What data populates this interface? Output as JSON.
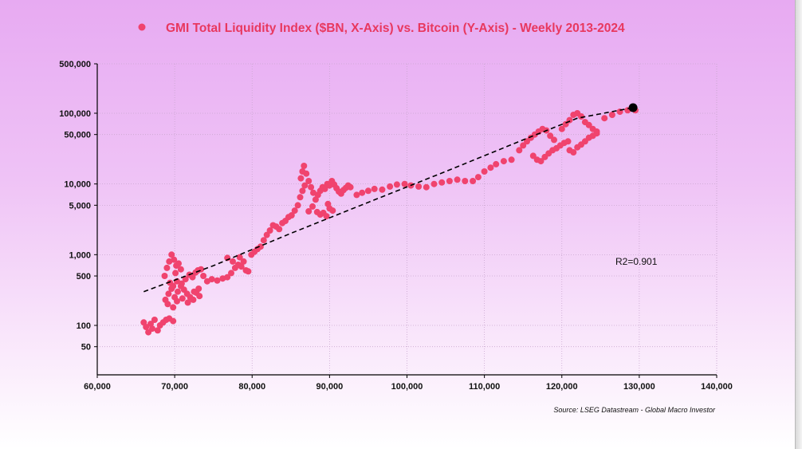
{
  "chart_data": {
    "type": "scatter",
    "title": "GMI Total Liquidity Index ($BN, X-Axis) vs. Bitcoin (Y-Axis) - Weekly 2013-2024",
    "xlabel": "",
    "ylabel": "",
    "xlim": [
      60000,
      140000
    ],
    "ylim": [
      20,
      500000
    ],
    "y_scale": "log",
    "x_ticks": [
      60000,
      70000,
      80000,
      90000,
      100000,
      110000,
      120000,
      130000,
      140000
    ],
    "x_tick_labels": [
      "60,000",
      "70,000",
      "80,000",
      "90,000",
      "100,000",
      "110,000",
      "120,000",
      "130,000",
      "140,000"
    ],
    "y_ticks": [
      50,
      100,
      500,
      1000,
      5000,
      10000,
      50000,
      100000,
      500000
    ],
    "y_tick_labels": [
      "50",
      "100",
      "500",
      "1,000",
      "5,000",
      "10,000",
      "50,000",
      "100,000",
      "500,000"
    ],
    "grid": true,
    "legend_position": "top",
    "source": "Source: LSEG Datastream - Global Macro Investor",
    "annotation": "R2=0.901",
    "colors": {
      "series": "#f0436e",
      "latest": "#000000",
      "trend": "#000000",
      "title": "#e8385f"
    },
    "series": [
      {
        "name": "GMI Total Liquidity Index ($BN, X-Axis) vs. Bitcoin (Y-Axis) - Weekly 2013-2024",
        "points": [
          [
            66000,
            110
          ],
          [
            66300,
            95
          ],
          [
            66600,
            80
          ],
          [
            66900,
            105
          ],
          [
            67100,
            90
          ],
          [
            67400,
            120
          ],
          [
            67800,
            85
          ],
          [
            68100,
            100
          ],
          [
            68500,
            110
          ],
          [
            68900,
            120
          ],
          [
            69300,
            125
          ],
          [
            69800,
            115
          ],
          [
            68700,
            500
          ],
          [
            69000,
            650
          ],
          [
            69300,
            800
          ],
          [
            69600,
            1000
          ],
          [
            69900,
            850
          ],
          [
            70200,
            700
          ],
          [
            70500,
            750
          ],
          [
            70800,
            620
          ],
          [
            70100,
            550
          ],
          [
            68800,
            230
          ],
          [
            69200,
            280
          ],
          [
            69600,
            330
          ],
          [
            70000,
            250
          ],
          [
            70400,
            300
          ],
          [
            70800,
            360
          ],
          [
            71200,
            320
          ],
          [
            71600,
            280
          ],
          [
            72000,
            250
          ],
          [
            72400,
            230
          ],
          [
            72800,
            290
          ],
          [
            73200,
            260
          ],
          [
            69400,
            400
          ],
          [
            69800,
            360
          ],
          [
            70300,
            420
          ],
          [
            70900,
            390
          ],
          [
            71400,
            450
          ],
          [
            71900,
            520
          ],
          [
            72300,
            480
          ],
          [
            72700,
            560
          ],
          [
            73000,
            600
          ],
          [
            73400,
            620
          ],
          [
            73700,
            500
          ],
          [
            69100,
            200
          ],
          [
            69800,
            180
          ],
          [
            70300,
            220
          ],
          [
            71000,
            240
          ],
          [
            71700,
            210
          ],
          [
            72500,
            300
          ],
          [
            73100,
            330
          ],
          [
            74200,
            420
          ],
          [
            74800,
            450
          ],
          [
            75500,
            430
          ],
          [
            76200,
            460
          ],
          [
            76800,
            480
          ],
          [
            77300,
            550
          ],
          [
            77800,
            650
          ],
          [
            78200,
            720
          ],
          [
            78600,
            680
          ],
          [
            78900,
            800
          ],
          [
            79200,
            600
          ],
          [
            79500,
            580
          ],
          [
            77500,
            800
          ],
          [
            76800,
            900
          ],
          [
            78400,
            920
          ],
          [
            79900,
            1000
          ],
          [
            80300,
            1100
          ],
          [
            80700,
            1200
          ],
          [
            81100,
            1300
          ],
          [
            81500,
            1600
          ],
          [
            81900,
            1900
          ],
          [
            82300,
            2200
          ],
          [
            82700,
            2600
          ],
          [
            83100,
            2500
          ],
          [
            83500,
            2300
          ],
          [
            83900,
            2800
          ],
          [
            84300,
            3000
          ],
          [
            84700,
            3400
          ],
          [
            85100,
            3600
          ],
          [
            85500,
            4200
          ],
          [
            85900,
            5000
          ],
          [
            86200,
            6500
          ],
          [
            86500,
            8000
          ],
          [
            86800,
            9500
          ],
          [
            86300,
            12000
          ],
          [
            86500,
            15000
          ],
          [
            86700,
            18000
          ],
          [
            87000,
            14000
          ],
          [
            87300,
            11000
          ],
          [
            87600,
            9000
          ],
          [
            87900,
            7500
          ],
          [
            88200,
            6000
          ],
          [
            88500,
            7000
          ],
          [
            88800,
            8000
          ],
          [
            89100,
            9000
          ],
          [
            89400,
            8500
          ],
          [
            89700,
            10000
          ],
          [
            90000,
            9500
          ],
          [
            90300,
            11000
          ],
          [
            90600,
            9800
          ],
          [
            90900,
            8700
          ],
          [
            91200,
            7800
          ],
          [
            91500,
            7300
          ],
          [
            91800,
            8200
          ],
          [
            92100,
            8800
          ],
          [
            92400,
            9500
          ],
          [
            92700,
            9000
          ],
          [
            88400,
            4000
          ],
          [
            88800,
            3700
          ],
          [
            89200,
            3900
          ],
          [
            89600,
            3500
          ],
          [
            90000,
            4500
          ],
          [
            90400,
            4200
          ],
          [
            87800,
            4800
          ],
          [
            87300,
            4100
          ],
          [
            89800,
            5200
          ],
          [
            93500,
            7000
          ],
          [
            94200,
            7500
          ],
          [
            95000,
            8000
          ],
          [
            95800,
            8500
          ],
          [
            96800,
            8300
          ],
          [
            97800,
            9200
          ],
          [
            98700,
            9800
          ],
          [
            99700,
            10000
          ],
          [
            100500,
            9500
          ],
          [
            101500,
            9200
          ],
          [
            102500,
            9000
          ],
          [
            103500,
            10000
          ],
          [
            104500,
            10500
          ],
          [
            105500,
            11000
          ],
          [
            106500,
            11500
          ],
          [
            107500,
            11000
          ],
          [
            108500,
            11000
          ],
          [
            109200,
            12500
          ],
          [
            110000,
            15000
          ],
          [
            110800,
            17000
          ],
          [
            111500,
            19000
          ],
          [
            112500,
            21000
          ],
          [
            113500,
            22000
          ],
          [
            114500,
            30000
          ],
          [
            115000,
            35000
          ],
          [
            115500,
            40000
          ],
          [
            116000,
            45000
          ],
          [
            116500,
            50000
          ],
          [
            117000,
            55000
          ],
          [
            117500,
            60000
          ],
          [
            118000,
            57000
          ],
          [
            118500,
            48000
          ],
          [
            119000,
            42000
          ],
          [
            116300,
            25000
          ],
          [
            116800,
            22000
          ],
          [
            117300,
            21000
          ],
          [
            117800,
            24000
          ],
          [
            118300,
            27000
          ],
          [
            118800,
            30000
          ],
          [
            119300,
            32000
          ],
          [
            119800,
            35000
          ],
          [
            120300,
            38000
          ],
          [
            120800,
            40000
          ],
          [
            120000,
            60000
          ],
          [
            120500,
            70000
          ],
          [
            121000,
            80000
          ],
          [
            121500,
            95000
          ],
          [
            122000,
            100000
          ],
          [
            122500,
            90000
          ],
          [
            123000,
            75000
          ],
          [
            123500,
            68000
          ],
          [
            124000,
            60000
          ],
          [
            124500,
            55000
          ],
          [
            121000,
            30000
          ],
          [
            121500,
            28000
          ],
          [
            122000,
            33000
          ],
          [
            122500,
            36000
          ],
          [
            123000,
            40000
          ],
          [
            123500,
            45000
          ],
          [
            124000,
            48000
          ],
          [
            124500,
            52000
          ],
          [
            125500,
            85000
          ],
          [
            126500,
            95000
          ],
          [
            127500,
            105000
          ],
          [
            128500,
            110000
          ],
          [
            129500,
            110000
          ]
        ]
      }
    ],
    "latest_point": [
      129200,
      120000
    ],
    "trendline": {
      "form": "exponential",
      "points": [
        [
          66000,
          300
        ],
        [
          75000,
          700
        ],
        [
          85000,
          2000
        ],
        [
          95000,
          5500
        ],
        [
          105000,
          15000
        ],
        [
          115000,
          42000
        ],
        [
          122000,
          85000
        ],
        [
          129200,
          120000
        ]
      ]
    }
  }
}
